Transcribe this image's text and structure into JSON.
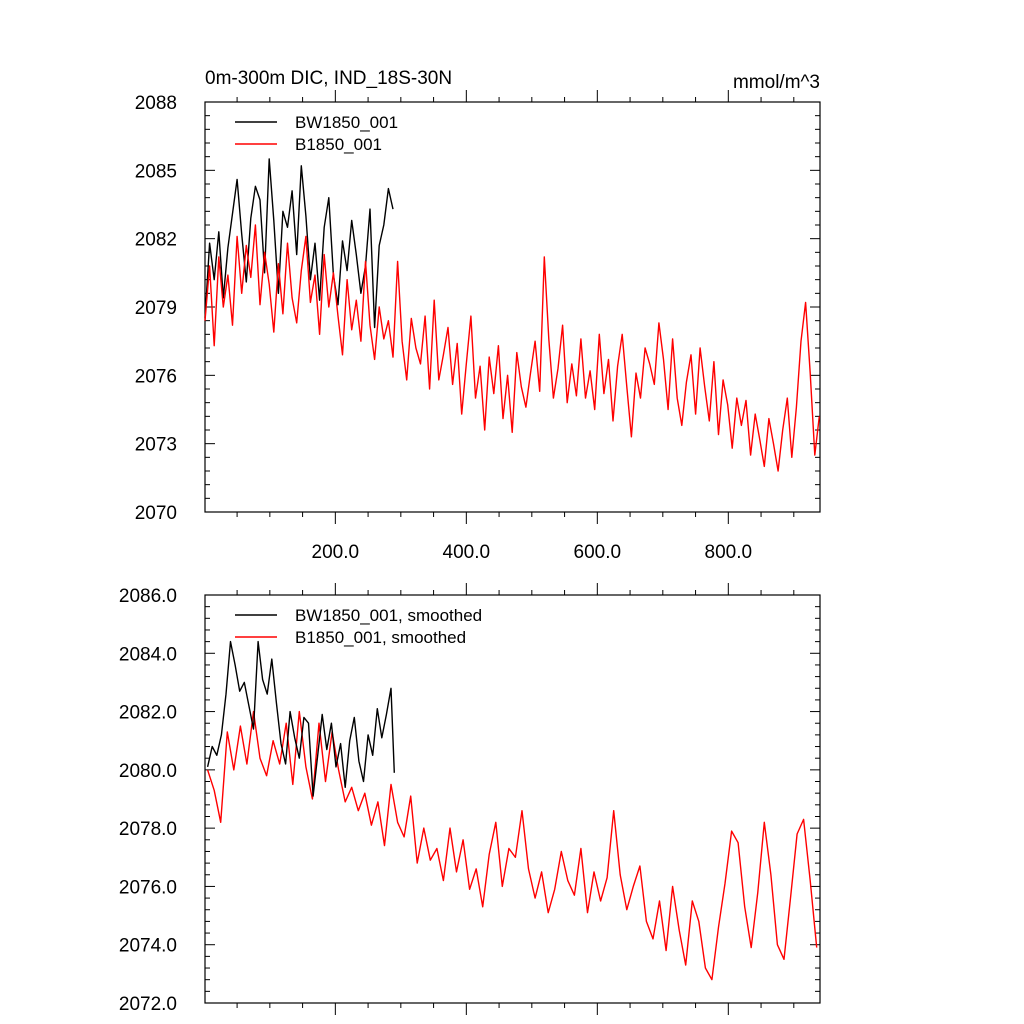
{
  "chart_data": [
    {
      "type": "line",
      "title": "0m-300m DIC, IND_18S-30N",
      "units": "mmol/m^3",
      "xlim": [
        1,
        940
      ],
      "ylim": [
        2070,
        2088
      ],
      "yticks": [
        2070,
        2073,
        2076,
        2079,
        2082,
        2085,
        2088
      ],
      "ytick_labels": [
        "2070",
        "2073",
        "2076",
        "2079",
        "2082",
        "2085",
        "2088"
      ],
      "xticks": [
        200,
        400,
        600,
        800
      ],
      "xtick_labels": [
        "200.0",
        "400.0",
        "600.0",
        "800.0"
      ],
      "legend_position": "top-left",
      "series": [
        {
          "name": "BW1850_001",
          "color": "#000000",
          "x": [
            1,
            8,
            15,
            22,
            29,
            36,
            43,
            50,
            57,
            64,
            71,
            78,
            85,
            92,
            99,
            106,
            113,
            120,
            127,
            134,
            141,
            148,
            155,
            162,
            169,
            176,
            183,
            190,
            197,
            204,
            211,
            218,
            225,
            232,
            239,
            246,
            253,
            260,
            267,
            274,
            281,
            288
          ],
          "values": [
            2078.5,
            2081.8,
            2080.2,
            2082.3,
            2079.4,
            2081.6,
            2083.1,
            2084.6,
            2082.2,
            2080.1,
            2082.9,
            2084.3,
            2083.7,
            2080.5,
            2085.5,
            2082.8,
            2079.6,
            2083.2,
            2082.5,
            2084.1,
            2081.3,
            2085.2,
            2083.0,
            2080.2,
            2081.8,
            2079.3,
            2082.5,
            2083.8,
            2080.4,
            2079.1,
            2081.9,
            2080.6,
            2082.8,
            2081.3,
            2079.6,
            2080.8,
            2083.3,
            2078.1,
            2081.7,
            2082.6,
            2084.2,
            2083.3
          ]
        },
        {
          "name": "B1850_001",
          "color": "#ff0000",
          "x": [
            1,
            8,
            15,
            22,
            29,
            36,
            43,
            50,
            57,
            64,
            71,
            78,
            85,
            92,
            99,
            106,
            113,
            120,
            127,
            134,
            141,
            148,
            155,
            162,
            169,
            176,
            183,
            190,
            197,
            204,
            211,
            218,
            225,
            232,
            239,
            246,
            253,
            260,
            267,
            274,
            281,
            288,
            295,
            302,
            309,
            316,
            323,
            330,
            337,
            344,
            351,
            358,
            365,
            372,
            379,
            386,
            393,
            400,
            407,
            414,
            421,
            428,
            435,
            442,
            449,
            456,
            463,
            470,
            477,
            484,
            491,
            498,
            505,
            512,
            519,
            526,
            533,
            540,
            547,
            554,
            561,
            568,
            575,
            582,
            589,
            596,
            603,
            610,
            617,
            624,
            631,
            638,
            645,
            652,
            659,
            666,
            673,
            680,
            687,
            694,
            701,
            708,
            715,
            722,
            729,
            736,
            743,
            750,
            757,
            764,
            771,
            778,
            785,
            792,
            799,
            806,
            813,
            820,
            827,
            834,
            841,
            848,
            855,
            862,
            869,
            876,
            883,
            890,
            897,
            904,
            911,
            918,
            925,
            932,
            939
          ],
          "values": [
            2078.4,
            2080.8,
            2077.3,
            2081.2,
            2079.0,
            2080.4,
            2078.2,
            2082.1,
            2079.6,
            2081.7,
            2080.3,
            2082.6,
            2079.1,
            2081.4,
            2080.0,
            2077.9,
            2080.9,
            2078.7,
            2081.8,
            2079.4,
            2078.3,
            2080.6,
            2082.1,
            2079.2,
            2080.4,
            2077.8,
            2081.3,
            2079.0,
            2080.5,
            2078.6,
            2076.9,
            2080.2,
            2078.0,
            2079.3,
            2077.5,
            2081.0,
            2078.2,
            2076.7,
            2079.0,
            2077.6,
            2078.4,
            2076.8,
            2081.0,
            2077.5,
            2075.8,
            2078.5,
            2077.2,
            2076.5,
            2078.6,
            2075.4,
            2079.3,
            2075.8,
            2076.9,
            2078.1,
            2075.6,
            2077.4,
            2074.3,
            2076.5,
            2078.6,
            2075.0,
            2076.4,
            2073.6,
            2076.8,
            2075.2,
            2077.3,
            2074.1,
            2076.0,
            2073.5,
            2077.0,
            2075.5,
            2074.6,
            2076.1,
            2077.5,
            2075.3,
            2081.2,
            2077.6,
            2075.0,
            2076.3,
            2078.2,
            2074.8,
            2076.5,
            2075.1,
            2077.6,
            2075.0,
            2076.2,
            2074.5,
            2077.8,
            2075.2,
            2076.7,
            2074.0,
            2076.4,
            2077.8,
            2075.5,
            2073.3,
            2076.1,
            2075.0,
            2077.2,
            2076.5,
            2075.6,
            2078.3,
            2076.7,
            2074.5,
            2077.6,
            2075.0,
            2073.8,
            2075.7,
            2076.9,
            2074.3,
            2077.2,
            2075.5,
            2074.0,
            2076.6,
            2073.4,
            2075.8,
            2074.7,
            2072.8,
            2075.0,
            2073.8,
            2074.9,
            2072.5,
            2074.3,
            2073.2,
            2072.0,
            2074.1,
            2073.0,
            2071.8,
            2073.6,
            2075.0,
            2072.4,
            2074.6,
            2077.5,
            2079.2,
            2076.1,
            2072.5,
            2074.2
          ]
        }
      ]
    },
    {
      "type": "line",
      "title": "",
      "xlim": [
        1,
        940
      ],
      "ylim": [
        2072,
        2086
      ],
      "yticks": [
        2072,
        2074,
        2076,
        2078,
        2080,
        2082,
        2084,
        2086
      ],
      "ytick_labels": [
        "2072.0",
        "2074.0",
        "2076.0",
        "2078.0",
        "2080.0",
        "2082.0",
        "2084.0",
        "2086.0"
      ],
      "xticks": [
        200,
        400,
        600,
        800
      ],
      "xtick_labels": [],
      "legend_position": "top-left",
      "series": [
        {
          "name": "BW1850_001, smoothed",
          "color": "#000000",
          "x": [
            5,
            12,
            19,
            26,
            33,
            40,
            47,
            54,
            61,
            68,
            75,
            82,
            89,
            96,
            103,
            110,
            117,
            124,
            131,
            138,
            145,
            152,
            159,
            166,
            173,
            180,
            187,
            194,
            201,
            208,
            215,
            222,
            229,
            236,
            243,
            250,
            257,
            264,
            271,
            278,
            285,
            290
          ],
          "values": [
            2080.1,
            2080.8,
            2080.5,
            2081.2,
            2082.6,
            2084.4,
            2083.6,
            2082.7,
            2083.0,
            2082.2,
            2081.4,
            2084.4,
            2083.1,
            2082.6,
            2083.8,
            2082.3,
            2080.9,
            2080.2,
            2082.0,
            2081.1,
            2080.4,
            2081.8,
            2081.6,
            2079.1,
            2080.5,
            2081.9,
            2080.7,
            2081.6,
            2080.1,
            2080.9,
            2079.4,
            2081.0,
            2081.8,
            2080.3,
            2079.6,
            2081.2,
            2080.5,
            2082.1,
            2081.1,
            2081.9,
            2082.8,
            2079.9
          ]
        },
        {
          "name": "B1850_001, smoothed",
          "color": "#ff0000",
          "x": [
            5,
            15,
            25,
            35,
            45,
            55,
            65,
            75,
            85,
            95,
            105,
            115,
            125,
            135,
            145,
            155,
            165,
            175,
            185,
            195,
            205,
            215,
            225,
            235,
            245,
            255,
            265,
            275,
            285,
            295,
            305,
            315,
            325,
            335,
            345,
            355,
            365,
            375,
            385,
            395,
            405,
            415,
            425,
            435,
            445,
            455,
            465,
            475,
            485,
            495,
            505,
            515,
            525,
            535,
            545,
            555,
            565,
            575,
            585,
            595,
            605,
            615,
            625,
            635,
            645,
            655,
            665,
            675,
            685,
            695,
            705,
            715,
            725,
            735,
            745,
            755,
            765,
            775,
            785,
            795,
            805,
            815,
            825,
            835,
            845,
            855,
            865,
            875,
            885,
            895,
            905,
            915,
            925,
            935
          ],
          "values": [
            2080.0,
            2079.3,
            2078.2,
            2081.3,
            2080.0,
            2081.5,
            2080.2,
            2082.0,
            2080.4,
            2079.8,
            2081.0,
            2080.2,
            2081.6,
            2079.5,
            2082.0,
            2080.1,
            2079.0,
            2081.6,
            2079.6,
            2081.3,
            2080.0,
            2078.9,
            2079.4,
            2078.6,
            2079.2,
            2078.1,
            2078.9,
            2077.4,
            2079.5,
            2078.2,
            2077.7,
            2079.1,
            2076.8,
            2078.0,
            2076.9,
            2077.3,
            2076.2,
            2078.0,
            2076.5,
            2077.6,
            2075.9,
            2076.6,
            2075.3,
            2077.1,
            2078.2,
            2076.0,
            2077.3,
            2077.0,
            2078.6,
            2076.6,
            2075.6,
            2076.5,
            2075.1,
            2075.9,
            2077.2,
            2076.2,
            2075.7,
            2077.3,
            2075.1,
            2076.5,
            2075.5,
            2076.3,
            2078.6,
            2076.4,
            2075.2,
            2076.0,
            2076.7,
            2074.8,
            2074.2,
            2075.5,
            2073.8,
            2076.0,
            2074.5,
            2073.3,
            2075.5,
            2074.8,
            2073.2,
            2072.8,
            2074.6,
            2076.1,
            2077.9,
            2077.5,
            2075.3,
            2073.9,
            2075.8,
            2078.2,
            2076.4,
            2074.0,
            2073.5,
            2075.6,
            2077.8,
            2078.3,
            2076.2,
            2073.9
          ]
        }
      ]
    }
  ]
}
